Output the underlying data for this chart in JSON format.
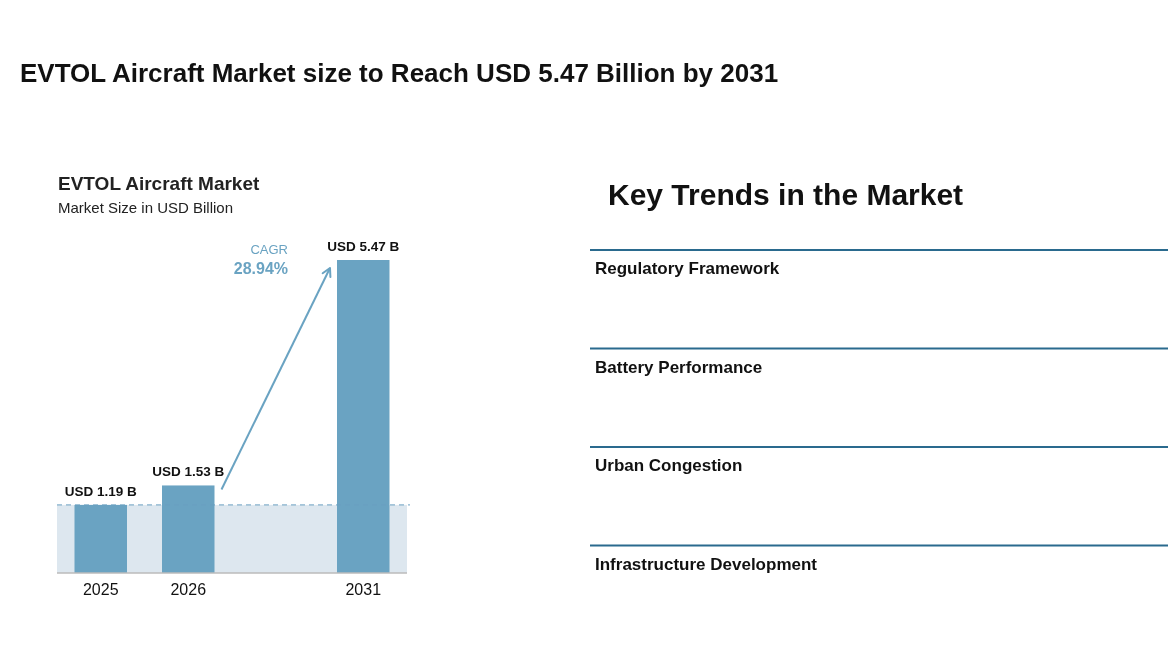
{
  "chart_data": [
    {
      "type": "bar",
      "title": "EVTOL Aircraft Market size to Reach USD 5.47 Billion by 2031",
      "subtitle": "EVTOL Aircraft Market",
      "ylabel": "Market Size in USD Billion",
      "categories": [
        "2025",
        "2026",
        null,
        "2031"
      ],
      "values": [
        1.19,
        1.53,
        null,
        5.47
      ],
      "value_labels": [
        "USD 1.19 B",
        "USD 1.53 B",
        null,
        "USD 5.47 B"
      ],
      "color": "#6aa3c2",
      "tick_labels": "x",
      "ref_lines": [
        {
          "axis": "y",
          "value": 1.19,
          "color": "#6a9fc0",
          "line_style": "dashed"
        }
      ],
      "bands": [
        {
          "axis": "y",
          "from": 0,
          "to": 1.19,
          "color": "#dde7ef"
        }
      ],
      "annotations": [
        "CAGR",
        "28.94%"
      ]
    },
    {
      "type": "other",
      "title": "Key Trends in the Market",
      "annotations": [
        "Regulatory Framework",
        "Battery Performance",
        "Urban Congestion",
        "Infrastructure Development"
      ]
    }
  ]
}
